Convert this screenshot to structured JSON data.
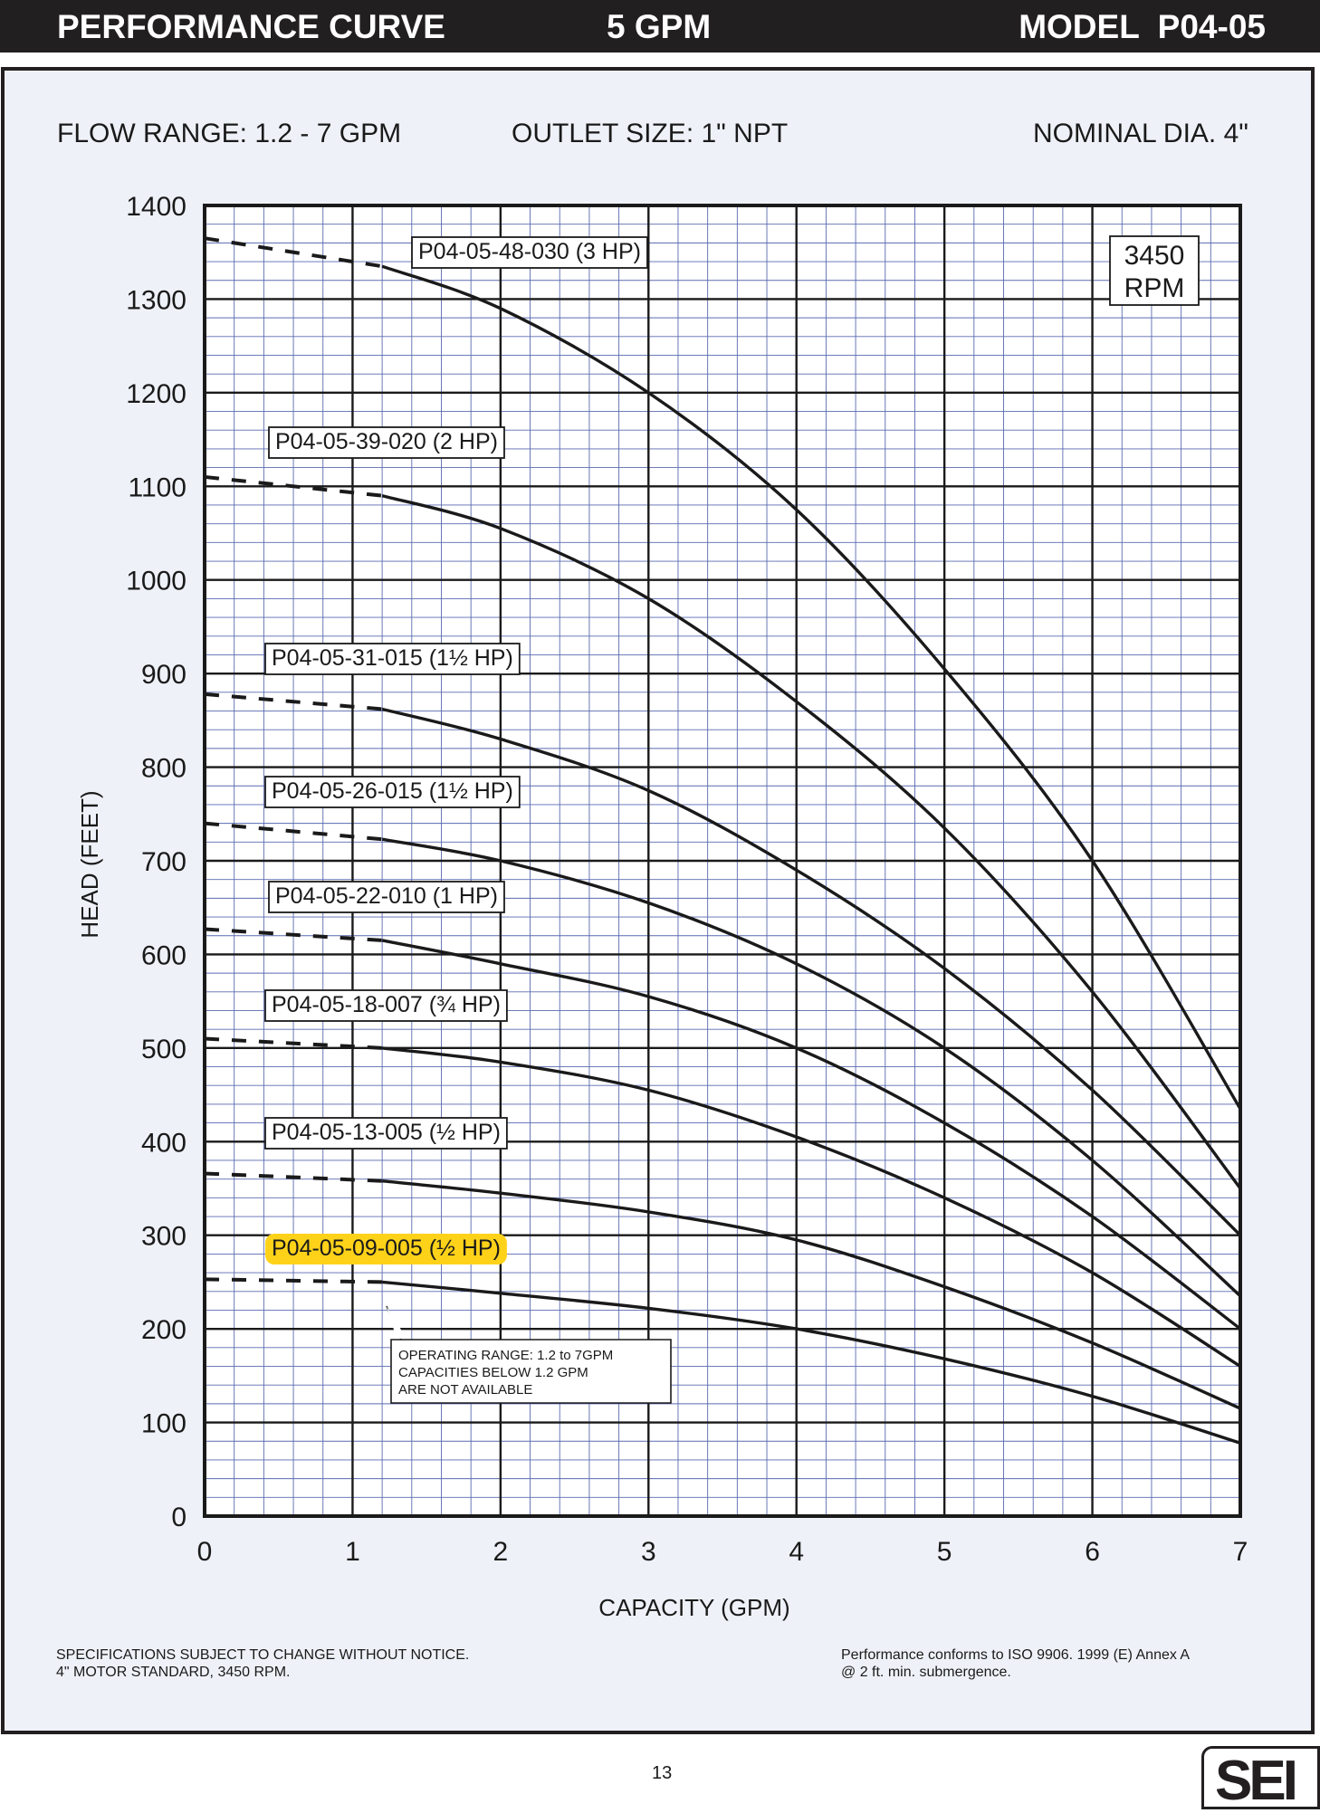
{
  "header": {
    "title": "PERFORMANCE CURVE",
    "flow": "5 GPM",
    "model": "MODEL  P04-05"
  },
  "info": {
    "flow_range": "FLOW RANGE: 1.2 - 7 GPM",
    "outlet": "OUTLET SIZE: 1\" NPT",
    "diameter": "NOMINAL DIA. 4\""
  },
  "rpm_box": {
    "line1": "3450",
    "line2": "RPM"
  },
  "note": {
    "line1": "OPERATING RANGE: 1.2 to 7GPM",
    "line2": "CAPACITIES BELOW 1.2 GPM",
    "line3": "ARE NOT AVAILABLE"
  },
  "footer": {
    "left_line1": "SPECIFICATIONS SUBJECT TO CHANGE WITHOUT NOTICE.",
    "left_line2": "4\" MOTOR STANDARD, 3450 RPM.",
    "right_line1": "Performance conforms to ISO 9906. 1999 (E) Annex A",
    "right_line2": "@ 2 ft. min. submergence.",
    "page_number": "13",
    "logo_text": "SEI"
  },
  "colors": {
    "header_bg": "#221f20",
    "panel_bg": "#eef2f8",
    "highlight": "#ffd21a",
    "minor_grid": "#5a6ab0"
  },
  "chart_data": {
    "type": "line",
    "xlabel": "CAPACITY (GPM)",
    "ylabel": "HEAD (FEET)",
    "xlim": [
      0,
      7
    ],
    "ylim": [
      0,
      1400
    ],
    "x_ticks": [
      "0",
      "1",
      "2",
      "3",
      "4",
      "5",
      "6",
      "7"
    ],
    "y_ticks": [
      "0",
      "100",
      "200",
      "300",
      "400",
      "500",
      "600",
      "700",
      "800",
      "900",
      "1000",
      "1100",
      "1200",
      "1300",
      "1400"
    ],
    "grid": true,
    "dashed_below_x": 1.2,
    "series": [
      {
        "name": "P04-05-48-030 (3 HP)",
        "x": [
          0,
          1.2,
          2,
          3,
          4,
          5,
          6,
          7
        ],
        "y": [
          1365,
          1335,
          1290,
          1200,
          1075,
          905,
          700,
          435
        ]
      },
      {
        "name": "P04-05-39-020 (2 HP)",
        "x": [
          0,
          1.2,
          2,
          3,
          4,
          5,
          6,
          7
        ],
        "y": [
          1110,
          1090,
          1055,
          980,
          870,
          735,
          560,
          350
        ]
      },
      {
        "name": "P04-05-31-015 (1½ HP)",
        "x": [
          0,
          1.2,
          2,
          3,
          4,
          5,
          6,
          7
        ],
        "y": [
          878,
          862,
          830,
          775,
          690,
          585,
          455,
          300
        ]
      },
      {
        "name": "P04-05-26-015 (1½ HP)",
        "x": [
          0,
          1.2,
          2,
          3,
          4,
          5,
          6,
          7
        ],
        "y": [
          740,
          723,
          700,
          655,
          590,
          500,
          380,
          235
        ]
      },
      {
        "name": "P04-05-22-010 (1 HP)",
        "x": [
          0,
          1.2,
          2,
          3,
          4,
          5,
          6,
          7
        ],
        "y": [
          627,
          615,
          590,
          555,
          500,
          420,
          320,
          200
        ]
      },
      {
        "name": "P04-05-18-007 (¾ HP)",
        "x": [
          0,
          1.2,
          2,
          3,
          4,
          5,
          6,
          7
        ],
        "y": [
          510,
          500,
          485,
          455,
          405,
          340,
          260,
          160
        ]
      },
      {
        "name": "P04-05-13-005 (½ HP)",
        "x": [
          0,
          1.2,
          2,
          3,
          4,
          5,
          6,
          7
        ],
        "y": [
          366,
          358,
          345,
          325,
          295,
          245,
          185,
          115
        ]
      },
      {
        "name": "P04-05-09-005 (½ HP)",
        "x": [
          0,
          1.2,
          2,
          3,
          4,
          5,
          6,
          7
        ],
        "y": [
          253,
          250,
          238,
          222,
          200,
          168,
          128,
          78
        ],
        "highlighted": true
      }
    ]
  }
}
